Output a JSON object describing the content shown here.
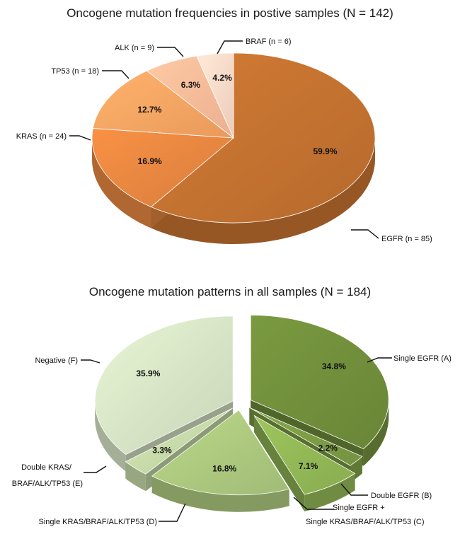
{
  "chart_data": [
    {
      "type": "pie",
      "title": "Oncogene mutation frequencies in postive samples (N = 142)",
      "slices": [
        {
          "label": "EGFR (n = 85)",
          "percent": "59.9%",
          "value": 59.9,
          "color": "#c0702f"
        },
        {
          "label": "KRAS (n = 24)",
          "percent": "16.9%",
          "value": 16.9,
          "color": "#e2843f"
        },
        {
          "label": "TP53 (n = 18)",
          "percent": "12.7%",
          "value": 12.7,
          "color": "#f5a261"
        },
        {
          "label": "ALK (n = 9)",
          "percent": "6.3%",
          "value": 6.3,
          "color": "#f7b896"
        },
        {
          "label": "BRAF (n = 6)",
          "percent": "4.2%",
          "value": 4.2,
          "color": "#f9d6c4"
        }
      ]
    },
    {
      "type": "pie",
      "title": "Oncogene mutation patterns in all samples (N = 184)",
      "slices": [
        {
          "label": "Single EGFR (A)",
          "percent": "34.8%",
          "value": 34.8,
          "color": "#6f8c3a"
        },
        {
          "label": "Double EGFR (B)",
          "percent": "2.2%",
          "value": 2.2,
          "color": "#7a9a43"
        },
        {
          "label": "Single EGFR + Single KRAS/BRAF/ALK/TP53 (C)",
          "label_lines": [
            "Single EGFR +",
            "Single KRAS/BRAF/ALK/TP53 (C)"
          ],
          "percent": "7.1%",
          "value": 7.1,
          "color": "#8fb454"
        },
        {
          "label": "Single KRAS/BRAF/ALK/TP53 (D)",
          "percent": "16.8%",
          "value": 16.8,
          "color": "#a9c57c"
        },
        {
          "label": "Double KRAS/BRAF/ALK/TP53 (E)",
          "label_lines": [
            "Double KRAS/",
            "BRAF/ALK/TP53 (E)"
          ],
          "percent": "3.3%",
          "value": 3.3,
          "color": "#c3d6a5"
        },
        {
          "label": "Negative (F)",
          "percent": "35.9%",
          "value": 35.9,
          "color": "#d3e0c2"
        }
      ]
    }
  ]
}
